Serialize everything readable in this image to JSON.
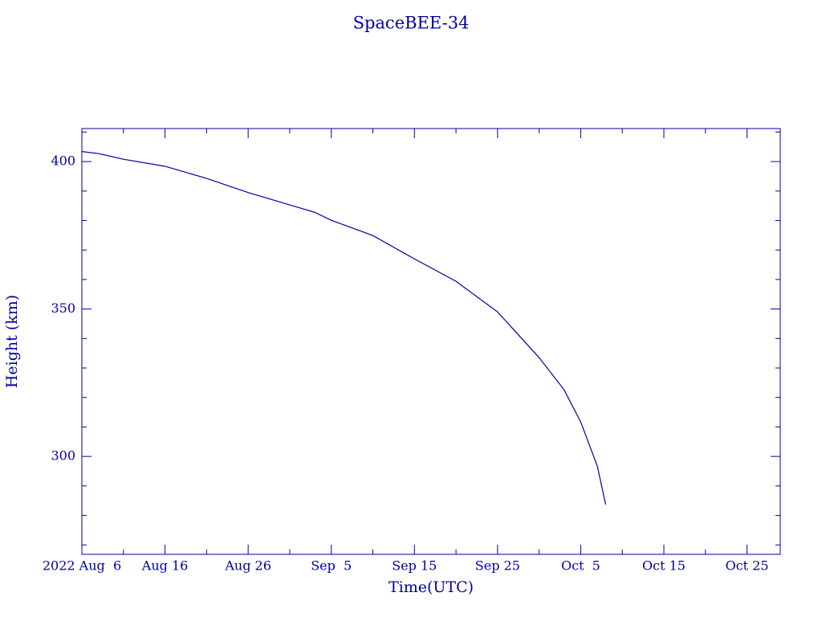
{
  "chart_data": {
    "type": "line",
    "title": "SpaceBEE-34",
    "x_label": "Time(UTC)",
    "y_label": "Height (km)",
    "x": [
      "2022-08-06",
      "2022-08-08",
      "2022-08-11",
      "2022-08-16",
      "2022-08-21",
      "2022-08-26",
      "2022-08-31",
      "2022-09-03",
      "2022-09-05",
      "2022-09-10",
      "2022-09-15",
      "2022-09-20",
      "2022-09-25",
      "2022-09-30",
      "2022-10-03",
      "2022-10-05",
      "2022-10-07",
      "2022-10-08"
    ],
    "series": [
      {
        "name": "SpaceBEE-34",
        "color": "#0000a0",
        "values": [
          403.4,
          402.7,
          400.8,
          398.4,
          394.3,
          389.5,
          385.3,
          382.8,
          380.1,
          374.9,
          367.0,
          359.4,
          349.0,
          333.5,
          322.6,
          311.7,
          296.7,
          283.7
        ]
      }
    ],
    "xlim": [
      "2022-08-06",
      "2022-10-29"
    ],
    "xticks": [
      {
        "value": "2022-08-06",
        "label": "2022 Aug  6"
      },
      {
        "value": "2022-08-16",
        "label": "Aug 16"
      },
      {
        "value": "2022-08-26",
        "label": "Aug 26"
      },
      {
        "value": "2022-09-05",
        "label": "Sep  5"
      },
      {
        "value": "2022-09-15",
        "label": "Sep 15"
      },
      {
        "value": "2022-09-25",
        "label": "Sep 25"
      },
      {
        "value": "2022-10-05",
        "label": "Oct  5"
      },
      {
        "value": "2022-10-15",
        "label": "Oct 15"
      },
      {
        "value": "2022-10-25",
        "label": "Oct 25"
      }
    ],
    "ylim": [
      266.8,
      411.2
    ],
    "yticks": [
      300,
      350,
      400
    ],
    "grid": false
  }
}
